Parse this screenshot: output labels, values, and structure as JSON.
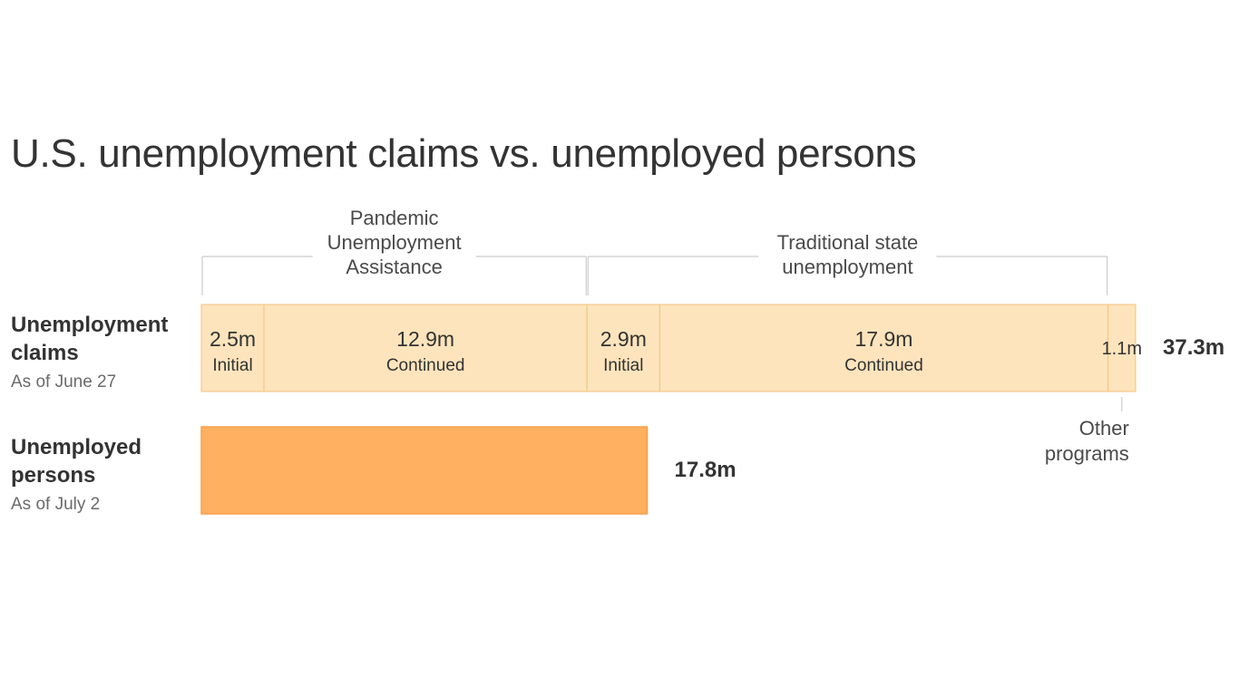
{
  "title": "U.S. unemployment claims vs. unemployed persons",
  "rows": {
    "claims": {
      "label_line1": "Unemployment",
      "label_line2": "claims",
      "as_of": "As of June 27"
    },
    "persons": {
      "label_line1": "Unemployed",
      "label_line2": "persons",
      "as_of": "As of July 2"
    }
  },
  "groups": {
    "pua": [
      "Pandemic",
      "Unemployment",
      "Assistance"
    ],
    "state": [
      "Traditional state",
      "unemployment"
    ],
    "other": [
      "Other",
      "programs"
    ]
  },
  "colors": {
    "claims_fill": "#fde4bc",
    "claims_stroke": "#f6c27d",
    "persons_fill": "#ffb060",
    "persons_stroke": "#f5a048",
    "bracket": "#cccccc",
    "text": "#333333",
    "muted": "#6b6b6b"
  },
  "chart_data": {
    "type": "bar",
    "unit": "m",
    "claims": {
      "total": 37.3,
      "total_label": "37.3m",
      "segments": [
        {
          "value": 2.5,
          "label": "2.5m",
          "sublabel": "Initial",
          "group": "pua"
        },
        {
          "value": 12.9,
          "label": "12.9m",
          "sublabel": "Continued",
          "group": "pua"
        },
        {
          "value": 2.9,
          "label": "2.9m",
          "sublabel": "Initial",
          "group": "state"
        },
        {
          "value": 17.9,
          "label": "17.9m",
          "sublabel": "Continued",
          "group": "state"
        },
        {
          "value": 1.1,
          "label": "1.1m",
          "sublabel": "",
          "group": "other"
        }
      ]
    },
    "persons": {
      "value": 17.8,
      "label": "17.8m"
    }
  }
}
